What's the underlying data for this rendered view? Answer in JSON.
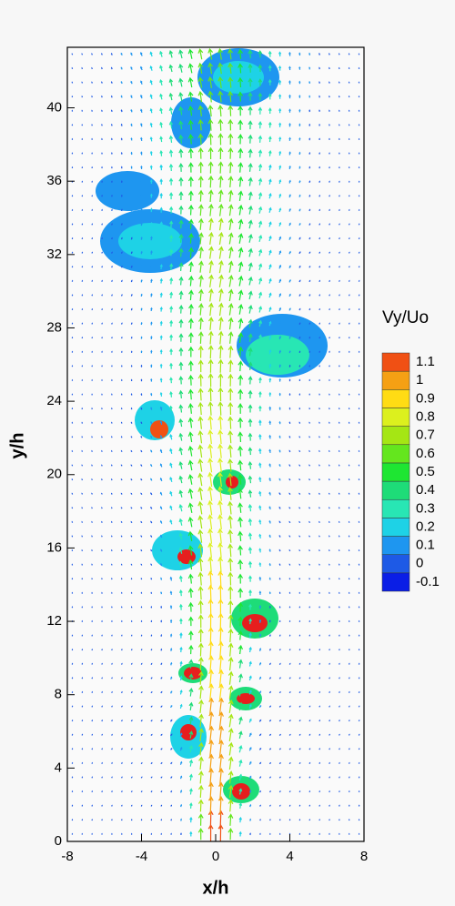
{
  "chart_data": {
    "type": "contour",
    "x_label": "x/h",
    "y_label": "y/h",
    "xlim": [
      -8,
      8
    ],
    "ylim": [
      0,
      43.3
    ],
    "xticks": [
      -8,
      -4,
      0,
      4,
      8
    ],
    "yticks": [
      0,
      4,
      8,
      12,
      16,
      20,
      24,
      28,
      32,
      36,
      40
    ],
    "colorbar": {
      "title": "Vy/Uo",
      "levels": [
        -0.1,
        0,
        0.1,
        0.2,
        0.3,
        0.4,
        0.5,
        0.6,
        0.7,
        0.8,
        0.9,
        1,
        1.1
      ],
      "colors": [
        "#0a1ee6",
        "#1e5ae6",
        "#1e96f0",
        "#1ed2e6",
        "#28e6b4",
        "#1edc78",
        "#1ee632",
        "#64e61e",
        "#a5e614",
        "#dcf01e",
        "#ffdc14",
        "#f5a014",
        "#f05014"
      ]
    }
  }
}
